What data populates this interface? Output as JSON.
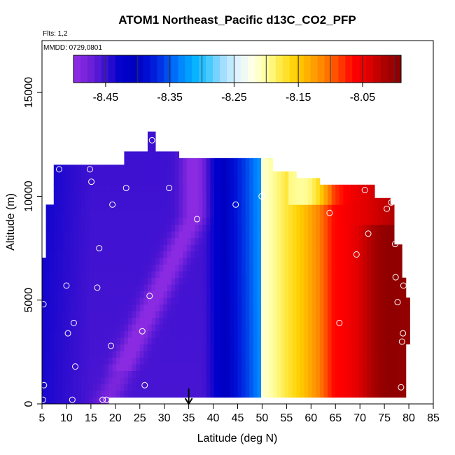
{
  "chart_data": {
    "type": "heatmap",
    "title": "ATOM1 Northeast_Pacific d13C_CO2_PFP",
    "flights_note": "Flts: 1,2",
    "date_note": "MMDD: 0729,0801",
    "xlabel": "Latitude (deg N)",
    "ylabel": "Altitude (m)",
    "xlim": [
      5,
      85
    ],
    "ylim": [
      0,
      17500
    ],
    "xticks": [
      5,
      10,
      15,
      20,
      25,
      30,
      35,
      40,
      45,
      50,
      55,
      60,
      65,
      70,
      75,
      80,
      85
    ],
    "xtick_labels": [
      "5",
      "10",
      "15",
      "20",
      "25",
      "30",
      "35",
      "40",
      "45",
      "50",
      "55",
      "60",
      "65",
      "70",
      "75",
      "80",
      "85"
    ],
    "yticks": [
      0,
      5000,
      10000,
      15000
    ],
    "ytick_labels": [
      "0",
      "5000",
      "10000",
      "15000"
    ],
    "colorbar": {
      "range": [
        -8.5,
        -7.99
      ],
      "ticks": [
        -8.45,
        -8.35,
        -8.25,
        -8.15,
        -8.05
      ],
      "tick_labels": [
        "-8.45",
        "-8.35",
        "-8.25",
        "-8.15",
        "-8.05"
      ],
      "colors": [
        "#8a2be2",
        "#6a1fd8",
        "#3a10d0",
        "#0000cd",
        "#0000c0",
        "#0010d8",
        "#0040e8",
        "#0080ff",
        "#00b0ff",
        "#40c8ff",
        "#a0dcff",
        "#e0f4ff",
        "#ffffe8",
        "#ffffa0",
        "#ffe840",
        "#ffd000",
        "#ffa800",
        "#ff8000",
        "#ff4000",
        "#ff0000",
        "#e00000",
        "#b00000",
        "#900000"
      ],
      "legend_position": "top"
    },
    "marker_latitude": 35,
    "samples": [
      {
        "lat": 5.2,
        "alt": 200
      },
      {
        "lat": 5.4,
        "alt": 900
      },
      {
        "lat": 5.3,
        "alt": 4800
      },
      {
        "lat": 8.5,
        "alt": 11300
      },
      {
        "lat": 10.0,
        "alt": 5700
      },
      {
        "lat": 10.3,
        "alt": 3400
      },
      {
        "lat": 11.2,
        "alt": 200
      },
      {
        "lat": 11.5,
        "alt": 3900
      },
      {
        "lat": 11.8,
        "alt": 1800
      },
      {
        "lat": 14.8,
        "alt": 11300
      },
      {
        "lat": 15.1,
        "alt": 10700
      },
      {
        "lat": 16.3,
        "alt": 5600
      },
      {
        "lat": 16.7,
        "alt": 7500
      },
      {
        "lat": 17.4,
        "alt": 200
      },
      {
        "lat": 18.2,
        "alt": 200
      },
      {
        "lat": 19.1,
        "alt": 2800
      },
      {
        "lat": 19.4,
        "alt": 9600
      },
      {
        "lat": 22.2,
        "alt": 10400
      },
      {
        "lat": 25.5,
        "alt": 3500
      },
      {
        "lat": 26.0,
        "alt": 900
      },
      {
        "lat": 27.0,
        "alt": 5200
      },
      {
        "lat": 27.5,
        "alt": 12700
      },
      {
        "lat": 31.0,
        "alt": 10400
      },
      {
        "lat": 36.7,
        "alt": 8900
      },
      {
        "lat": 44.6,
        "alt": 9600
      },
      {
        "lat": 49.9,
        "alt": 10000
      },
      {
        "lat": 63.8,
        "alt": 9200
      },
      {
        "lat": 65.8,
        "alt": 3900
      },
      {
        "lat": 69.3,
        "alt": 7200
      },
      {
        "lat": 71.0,
        "alt": 10300
      },
      {
        "lat": 71.7,
        "alt": 8200
      },
      {
        "lat": 75.5,
        "alt": 9400
      },
      {
        "lat": 76.4,
        "alt": 9700
      },
      {
        "lat": 77.2,
        "alt": 7700
      },
      {
        "lat": 77.3,
        "alt": 6100
      },
      {
        "lat": 77.7,
        "alt": 4900
      },
      {
        "lat": 78.6,
        "alt": 3000
      },
      {
        "lat": 78.8,
        "alt": 3400
      },
      {
        "lat": 78.9,
        "alt": 5700
      },
      {
        "lat": 78.4,
        "alt": 800
      }
    ],
    "grid": false
  }
}
